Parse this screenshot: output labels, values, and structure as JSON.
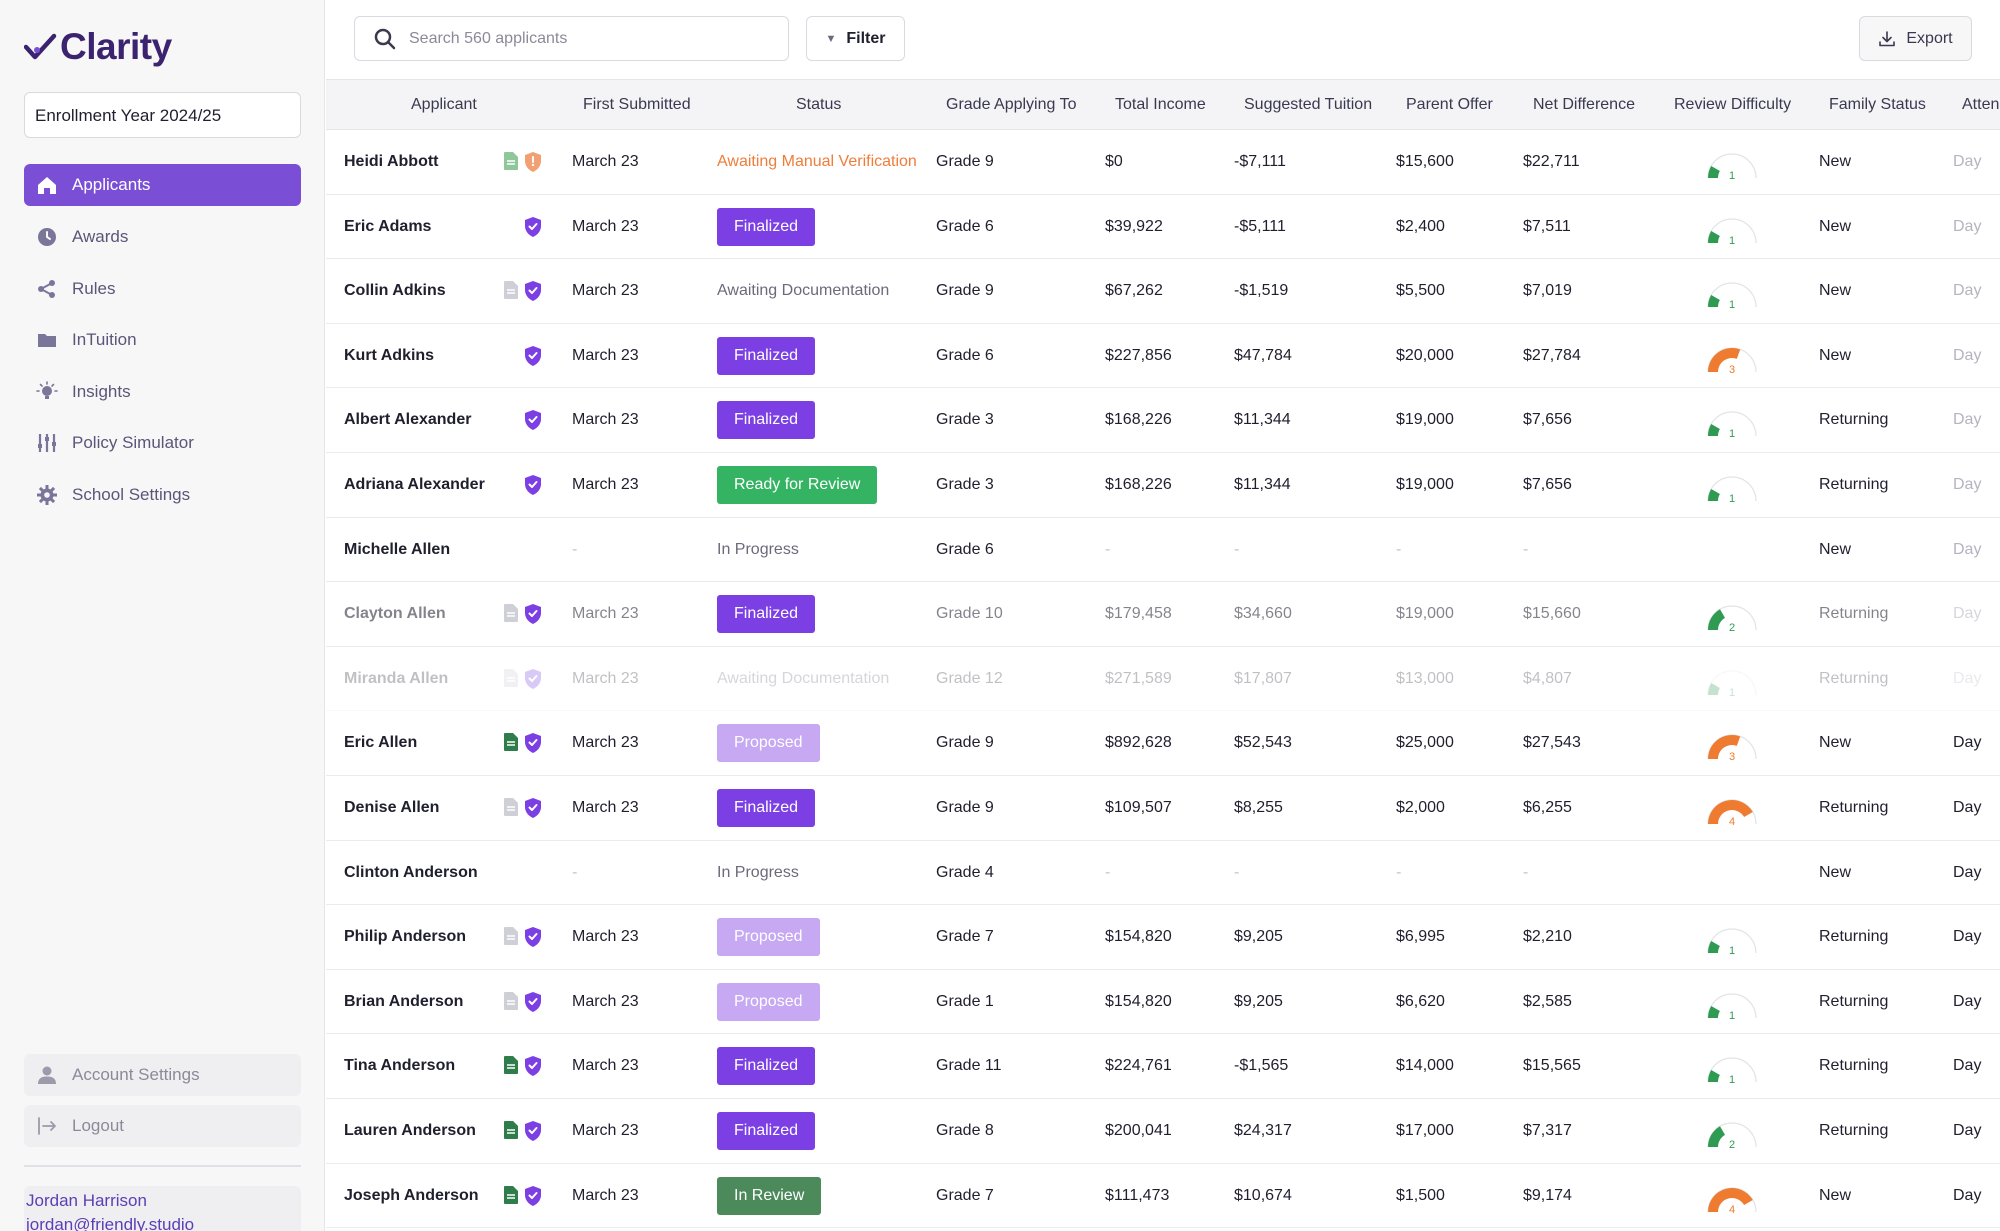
{
  "app": {
    "brand": "Clarity"
  },
  "sidebar": {
    "year_select": "Enrollment Year 2024/25",
    "nav": [
      {
        "label": "Applicants",
        "icon": "home-icon",
        "active": true
      },
      {
        "label": "Awards",
        "icon": "clock-icon",
        "active": false
      },
      {
        "label": "Rules",
        "icon": "share-icon",
        "active": false
      },
      {
        "label": "InTuition",
        "icon": "folder-icon",
        "active": false
      },
      {
        "label": "Insights",
        "icon": "lightbulb-icon",
        "active": false
      },
      {
        "label": "Policy Simulator",
        "icon": "sliders-icon",
        "active": false
      },
      {
        "label": "School Settings",
        "icon": "gear-icon",
        "active": false
      }
    ],
    "bottom": [
      {
        "label": "Account Settings",
        "icon": "user-icon"
      },
      {
        "label": "Logout",
        "icon": "logout-icon"
      }
    ],
    "user": {
      "name": "Jordan Harrison",
      "email": "jordan@friendly.studio"
    }
  },
  "toolbar": {
    "search_placeholder": "Search 560 applicants",
    "filter_label": "Filter",
    "export_label": "Export"
  },
  "columns": [
    "Applicant",
    "First Submitted",
    "Status",
    "Grade Applying To",
    "Total Income",
    "Suggested Tuition",
    "Parent Offer",
    "Net Difference",
    "Review Difficulty",
    "Family Status",
    "Atten"
  ],
  "status_colors": {
    "Finalized": "#7b3fe4",
    "Ready for Review": "#34b463",
    "Proposed": "#c6a8f3",
    "In Review": "#4c8a5c",
    "Awaiting Manual Verification": "#ef7d3a",
    "Awaiting Documentation": "#6b6a7c",
    "In Progress": "#6b6a7c"
  },
  "rows": [
    {
      "name": "Heidi Abbott",
      "doc": "green-light",
      "shield": "orange",
      "submitted": "March 23",
      "status": "Awaiting Manual Verification",
      "grade": "Grade 9",
      "income": "$0",
      "tuition": "-$7,111",
      "offer": "$15,600",
      "net": "$22,711",
      "difficulty": 1,
      "family": "New",
      "atten": "Day",
      "style": ""
    },
    {
      "name": "Eric Adams",
      "doc": "",
      "shield": "purple",
      "submitted": "March 23",
      "status": "Finalized",
      "grade": "Grade 6",
      "income": "$39,922",
      "tuition": "-$5,111",
      "offer": "$2,400",
      "net": "$7,511",
      "difficulty": 1,
      "family": "New",
      "atten": "Day",
      "style": ""
    },
    {
      "name": "Collin Adkins",
      "doc": "grey",
      "shield": "purple",
      "submitted": "March 23",
      "status": "Awaiting Documentation",
      "grade": "Grade 9",
      "income": "$67,262",
      "tuition": "-$1,519",
      "offer": "$5,500",
      "net": "$7,019",
      "difficulty": 1,
      "family": "New",
      "atten": "Day",
      "style": ""
    },
    {
      "name": "Kurt Adkins",
      "doc": "",
      "shield": "purple",
      "submitted": "March 23",
      "status": "Finalized",
      "grade": "Grade 6",
      "income": "$227,856",
      "tuition": "$47,784",
      "offer": "$20,000",
      "net": "$27,784",
      "difficulty": 3,
      "family": "New",
      "atten": "Day",
      "style": ""
    },
    {
      "name": "Albert Alexander",
      "doc": "",
      "shield": "purple",
      "submitted": "March 23",
      "status": "Finalized",
      "grade": "Grade 3",
      "income": "$168,226",
      "tuition": "$11,344",
      "offer": "$19,000",
      "net": "$7,656",
      "difficulty": 1,
      "family": "Returning",
      "atten": "Day",
      "style": ""
    },
    {
      "name": "Adriana Alexander",
      "doc": "",
      "shield": "purple",
      "submitted": "March 23",
      "status": "Ready for Review",
      "grade": "Grade 3",
      "income": "$168,226",
      "tuition": "$11,344",
      "offer": "$19,000",
      "net": "$7,656",
      "difficulty": 1,
      "family": "Returning",
      "atten": "Day",
      "style": ""
    },
    {
      "name": "Michelle Allen",
      "doc": "",
      "shield": "",
      "submitted": "-",
      "status": "In Progress",
      "grade": "Grade 6",
      "income": "-",
      "tuition": "-",
      "offer": "-",
      "net": "-",
      "difficulty": 0,
      "family": "New",
      "atten": "Day",
      "style": ""
    },
    {
      "name": "Clayton Allen",
      "doc": "grey",
      "shield": "purple",
      "submitted": "March 23",
      "status": "Finalized",
      "grade": "Grade 10",
      "income": "$179,458",
      "tuition": "$34,660",
      "offer": "$19,000",
      "net": "$15,660",
      "difficulty": 2,
      "family": "Returning",
      "atten": "Day",
      "style": "faded"
    },
    {
      "name": "Miranda Allen",
      "doc": "grey",
      "shield": "purple",
      "submitted": "March 23",
      "status": "Awaiting Documentation",
      "grade": "Grade 12",
      "income": "$271,589",
      "tuition": "$17,807",
      "offer": "$13,000",
      "net": "$4,807",
      "difficulty": 1,
      "family": "Returning",
      "atten": "Day",
      "style": "vfaded"
    },
    {
      "name": "Eric Allen",
      "doc": "green",
      "shield": "purple",
      "submitted": "March 23",
      "status": "Proposed",
      "grade": "Grade 9",
      "income": "$892,628",
      "tuition": "$52,543",
      "offer": "$25,000",
      "net": "$27,543",
      "difficulty": 3,
      "family": "New",
      "atten": "Day",
      "style": ""
    },
    {
      "name": "Denise Allen",
      "doc": "grey",
      "shield": "purple",
      "submitted": "March 23",
      "status": "Finalized",
      "grade": "Grade 9",
      "income": "$109,507",
      "tuition": "$8,255",
      "offer": "$2,000",
      "net": "$6,255",
      "difficulty": 4,
      "family": "Returning",
      "atten": "Day",
      "style": ""
    },
    {
      "name": "Clinton Anderson",
      "doc": "",
      "shield": "",
      "submitted": "-",
      "status": "In Progress",
      "grade": "Grade 4",
      "income": "-",
      "tuition": "-",
      "offer": "-",
      "net": "-",
      "difficulty": 0,
      "family": "New",
      "atten": "Day",
      "style": ""
    },
    {
      "name": "Philip Anderson",
      "doc": "grey",
      "shield": "purple",
      "submitted": "March 23",
      "status": "Proposed",
      "grade": "Grade 7",
      "income": "$154,820",
      "tuition": "$9,205",
      "offer": "$6,995",
      "net": "$2,210",
      "difficulty": 1,
      "family": "Returning",
      "atten": "Day",
      "style": ""
    },
    {
      "name": "Brian Anderson",
      "doc": "grey",
      "shield": "purple",
      "submitted": "March 23",
      "status": "Proposed",
      "grade": "Grade 1",
      "income": "$154,820",
      "tuition": "$9,205",
      "offer": "$6,620",
      "net": "$2,585",
      "difficulty": 1,
      "family": "Returning",
      "atten": "Day",
      "style": ""
    },
    {
      "name": "Tina Anderson",
      "doc": "green",
      "shield": "purple",
      "submitted": "March 23",
      "status": "Finalized",
      "grade": "Grade 11",
      "income": "$224,761",
      "tuition": "-$1,565",
      "offer": "$14,000",
      "net": "$15,565",
      "difficulty": 1,
      "family": "Returning",
      "atten": "Day",
      "style": ""
    },
    {
      "name": "Lauren Anderson",
      "doc": "green",
      "shield": "purple",
      "submitted": "March 23",
      "status": "Finalized",
      "grade": "Grade 8",
      "income": "$200,041",
      "tuition": "$24,317",
      "offer": "$17,000",
      "net": "$7,317",
      "difficulty": 2,
      "family": "Returning",
      "atten": "Day",
      "style": ""
    },
    {
      "name": "Joseph Anderson",
      "doc": "green",
      "shield": "purple",
      "submitted": "March 23",
      "status": "In Review",
      "grade": "Grade 7",
      "income": "$111,473",
      "tuition": "$10,674",
      "offer": "$1,500",
      "net": "$9,174",
      "difficulty": 4,
      "family": "New",
      "atten": "Day",
      "style": ""
    }
  ]
}
